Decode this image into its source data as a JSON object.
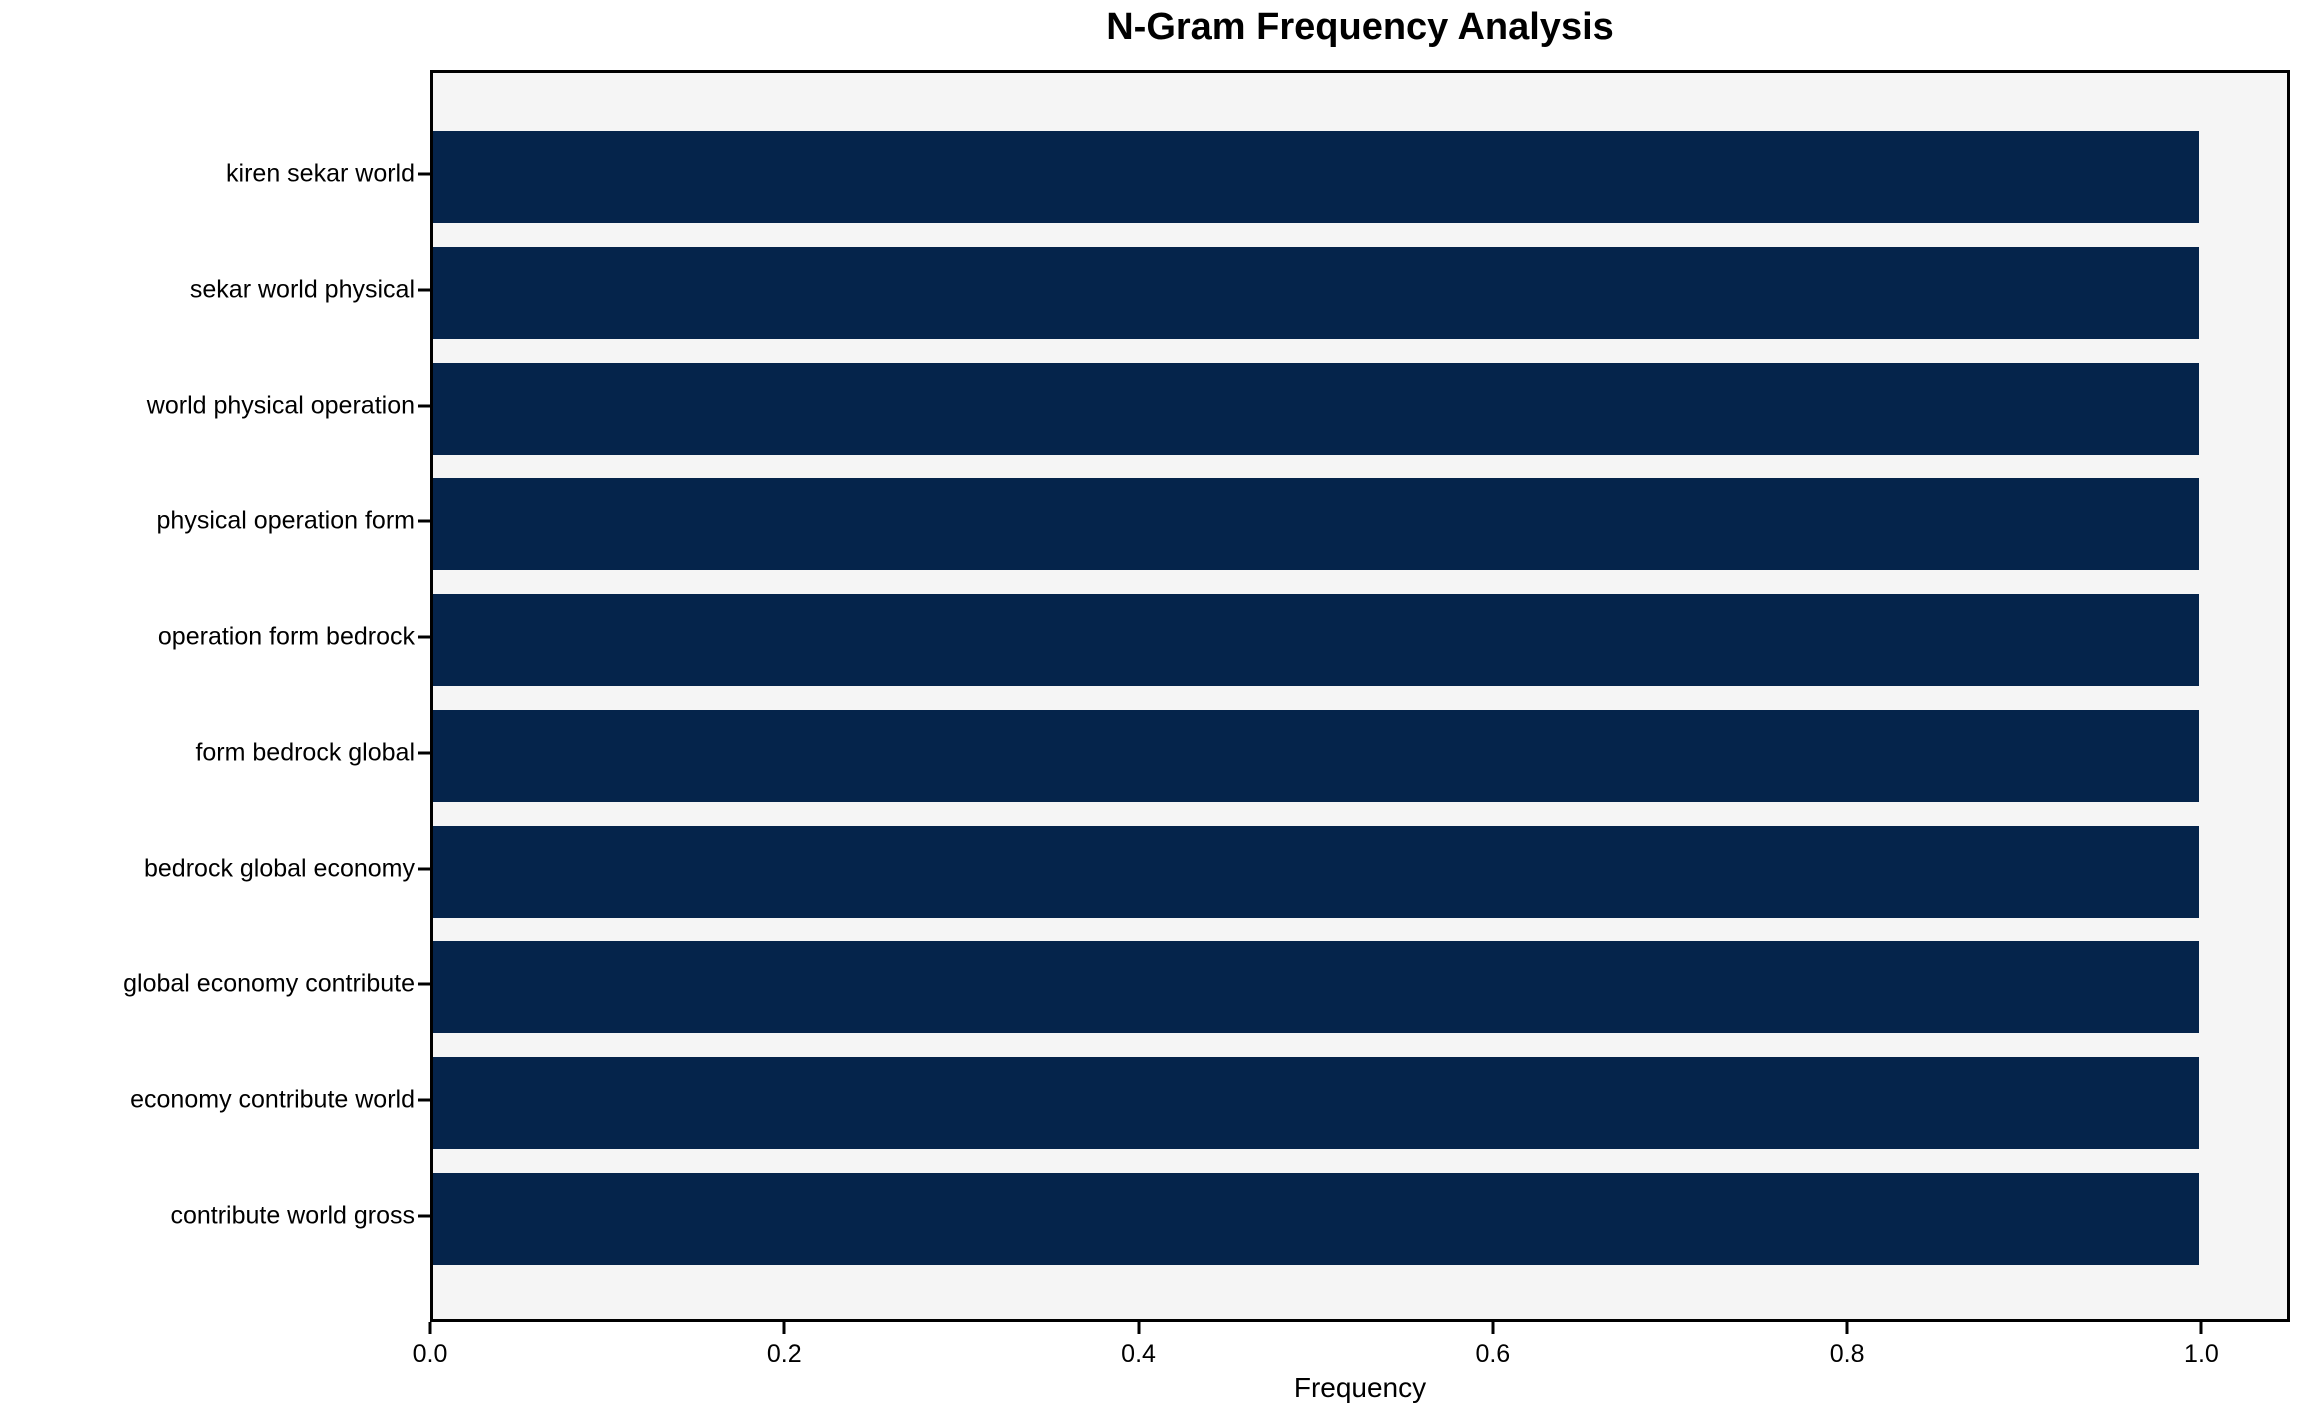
{
  "chart_data": {
    "type": "bar",
    "orientation": "horizontal",
    "title": "N-Gram Frequency Analysis",
    "xlabel": "Frequency",
    "ylabel": "",
    "categories": [
      "kiren sekar world",
      "sekar world physical",
      "world physical operation",
      "physical operation form",
      "operation form bedrock",
      "form bedrock global",
      "bedrock global economy",
      "global economy contribute",
      "economy contribute world",
      "contribute world gross"
    ],
    "values": [
      1.0,
      1.0,
      1.0,
      1.0,
      1.0,
      1.0,
      1.0,
      1.0,
      1.0,
      1.0
    ],
    "xlim": [
      0,
      1.05
    ],
    "x_tick_values": [
      0.0,
      0.2,
      0.4,
      0.6,
      0.8,
      1.0
    ],
    "x_tick_labels": [
      "0.0",
      "0.2",
      "0.4",
      "0.6",
      "0.8",
      "1.0"
    ],
    "grid": false,
    "legend": null,
    "colors": {
      "bar": "#05244b",
      "plot_background": "#f5f5f5",
      "figure_background": "#ffffff",
      "axis": "#000000",
      "text": "#000000"
    }
  }
}
